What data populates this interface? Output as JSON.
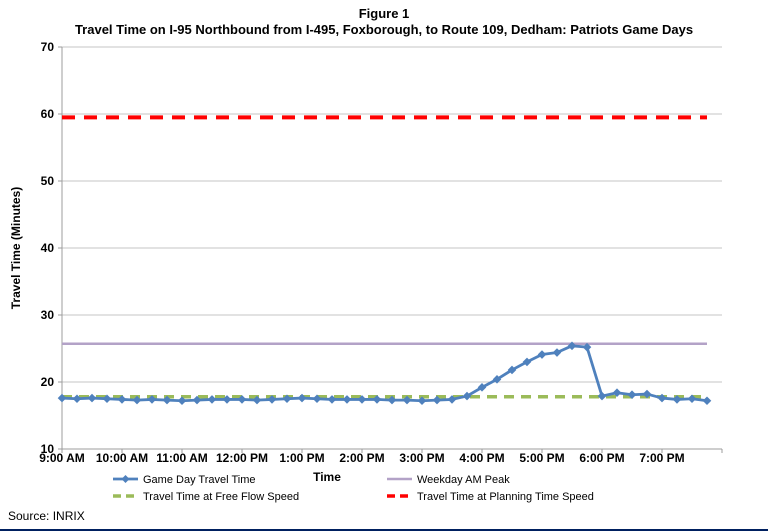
{
  "header": {
    "figure_label": "Figure 1"
  },
  "source_note": "Source: INRIX",
  "chart_data": {
    "type": "line",
    "title": "Travel Time on I-95 Northbound from I-495, Foxborough, to Route 109, Dedham: Patriots Game Days",
    "xlabel": "Time",
    "ylabel": "Travel Time (Minutes)",
    "ylim": [
      10,
      70
    ],
    "ytick_step": 10,
    "grid": "horizontal-only",
    "legend_position": "bottom-two-columns",
    "x_start_hour": 9,
    "x_end_hour": 20,
    "x_interval_minutes": 15,
    "xtick_labels": [
      "9:00 AM",
      "10:00 AM",
      "11:00 AM",
      "12:00 PM",
      "1:00 PM",
      "2:00 PM",
      "3:00 PM",
      "4:00 PM",
      "5:00 PM",
      "6:00 PM",
      "7:00 PM"
    ],
    "series": [
      {
        "name": "Game Day Travel Time",
        "type": "line-markers",
        "marker": "diamond",
        "dash": "solid",
        "color": "#4F81BD",
        "times": [
          "9:00 AM",
          "9:15 AM",
          "9:30 AM",
          "9:45 AM",
          "10:00 AM",
          "10:15 AM",
          "10:30 AM",
          "10:45 AM",
          "11:00 AM",
          "11:15 AM",
          "11:30 AM",
          "11:45 AM",
          "12:00 PM",
          "12:15 PM",
          "12:30 PM",
          "12:45 PM",
          "1:00 PM",
          "1:15 PM",
          "1:30 PM",
          "1:45 PM",
          "2:00 PM",
          "2:15 PM",
          "2:30 PM",
          "2:45 PM",
          "3:00 PM",
          "3:15 PM",
          "3:30 PM",
          "3:45 PM",
          "4:00 PM",
          "4:15 PM",
          "4:30 PM",
          "4:45 PM",
          "5:00 PM",
          "5:15 PM",
          "5:30 PM",
          "5:45 PM",
          "6:00 PM",
          "6:15 PM",
          "6:30 PM",
          "6:45 PM",
          "7:00 PM",
          "7:15 PM",
          "7:30 PM",
          "7:45 PM"
        ],
        "values": [
          17.6,
          17.5,
          17.6,
          17.5,
          17.4,
          17.3,
          17.4,
          17.3,
          17.2,
          17.3,
          17.4,
          17.4,
          17.4,
          17.3,
          17.4,
          17.5,
          17.6,
          17.5,
          17.4,
          17.4,
          17.4,
          17.4,
          17.3,
          17.3,
          17.2,
          17.3,
          17.4,
          17.9,
          19.2,
          20.4,
          21.8,
          23.0,
          24.1,
          24.4,
          25.4,
          25.2,
          17.9,
          18.4,
          18.1,
          18.2,
          17.6,
          17.4,
          17.5,
          17.2
        ]
      },
      {
        "name": "Weekday AM Peak",
        "type": "hline",
        "dash": "solid",
        "color": "#B3A2C7",
        "value": 25.7
      },
      {
        "name": "Travel Time at Free Flow Speed",
        "type": "hline",
        "dash": "dashed",
        "color": "#9BBB59",
        "value": 17.8
      },
      {
        "name": "Travel Time at Planning Time Speed",
        "type": "hline",
        "dash": "dashed",
        "color": "#FF0000",
        "value": 59.5
      }
    ]
  }
}
